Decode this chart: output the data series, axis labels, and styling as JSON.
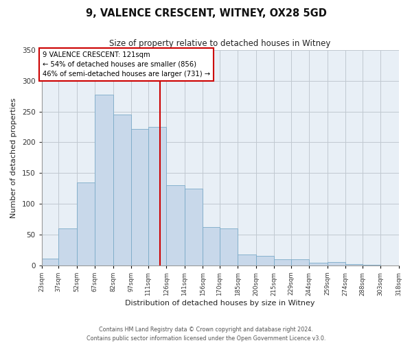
{
  "title": "9, VALENCE CRESCENT, WITNEY, OX28 5GD",
  "subtitle": "Size of property relative to detached houses in Witney",
  "xlabel": "Distribution of detached houses by size in Witney",
  "ylabel": "Number of detached properties",
  "bar_color": "#c8d8ea",
  "bar_edge_color": "#7aaac8",
  "background_color": "#ffffff",
  "ax_facecolor": "#e8eff6",
  "grid_color": "#c0c8d0",
  "vline_value": 121,
  "vline_color": "#cc0000",
  "annotation_text": "9 VALENCE CRESCENT: 121sqm\n← 54% of detached houses are smaller (856)\n46% of semi-detached houses are larger (731) →",
  "annotation_box_color": "#ffffff",
  "annotation_box_edge_color": "#cc0000",
  "bins": [
    23,
    37,
    52,
    67,
    82,
    97,
    111,
    126,
    141,
    156,
    170,
    185,
    200,
    215,
    229,
    244,
    259,
    274,
    288,
    303,
    318
  ],
  "values": [
    11,
    60,
    135,
    277,
    245,
    222,
    225,
    130,
    125,
    62,
    60,
    18,
    15,
    10,
    10,
    4,
    5,
    2,
    1,
    0
  ],
  "ylim": [
    0,
    350
  ],
  "yticks": [
    0,
    50,
    100,
    150,
    200,
    250,
    300,
    350
  ],
  "footer_text": "Contains HM Land Registry data © Crown copyright and database right 2024.\nContains public sector information licensed under the Open Government Licence v3.0.",
  "figsize": [
    6.0,
    5.0
  ],
  "dpi": 100
}
